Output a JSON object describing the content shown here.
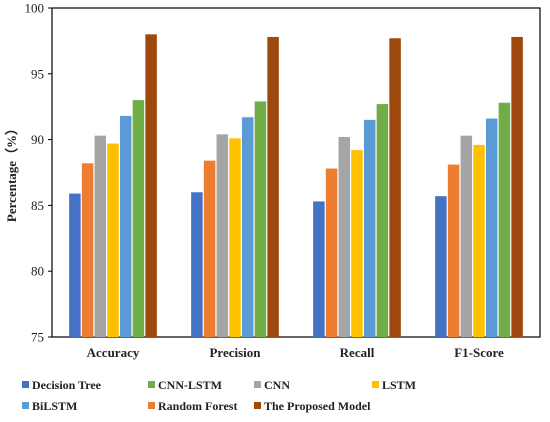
{
  "chart_data": {
    "type": "bar",
    "categories": [
      "Accuracy",
      "Precision",
      "Recall",
      "F1-Score"
    ],
    "ylabel": "Percentage（%）",
    "ylim": [
      75,
      100
    ],
    "yticks": [
      75,
      80,
      85,
      90,
      95,
      100
    ],
    "grid": false,
    "legend_position": "bottom",
    "series": [
      {
        "name": "Decision Tree",
        "color": "#4472C4",
        "values": [
          85.9,
          86.0,
          85.3,
          85.7
        ]
      },
      {
        "name": "Random Forest",
        "color": "#ED7D31",
        "values": [
          88.2,
          88.4,
          87.8,
          88.1
        ]
      },
      {
        "name": "CNN",
        "color": "#A5A5A5",
        "values": [
          90.3,
          90.4,
          90.2,
          90.3
        ]
      },
      {
        "name": "LSTM",
        "color": "#FFC000",
        "values": [
          89.7,
          90.1,
          89.2,
          89.6
        ]
      },
      {
        "name": "BiLSTM",
        "color": "#5B9BD5",
        "values": [
          91.8,
          91.7,
          91.5,
          91.6
        ]
      },
      {
        "name": "CNN-LSTM",
        "color": "#70AD47",
        "values": [
          93.0,
          92.9,
          92.7,
          92.8
        ]
      },
      {
        "name": "The Proposed Model",
        "color": "#9E480E",
        "values": [
          98.0,
          97.8,
          97.7,
          97.8
        ]
      }
    ],
    "legend_order": [
      0,
      5,
      2,
      3,
      4,
      1,
      6
    ]
  }
}
